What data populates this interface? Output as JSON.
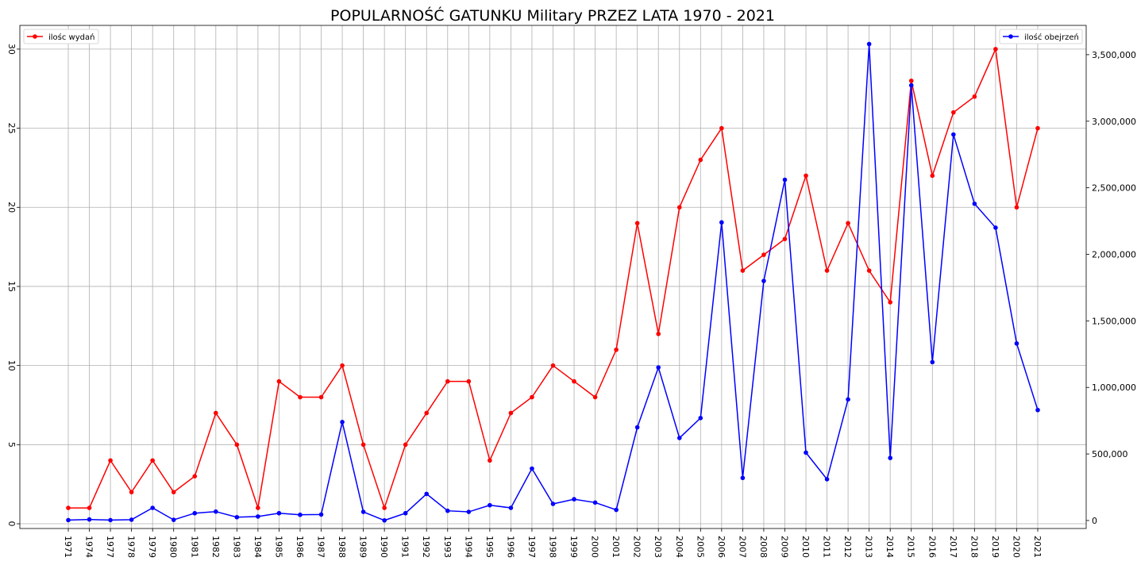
{
  "chart_data": {
    "type": "line",
    "title": "POPULARNOŚĆ GATUNKU Military PRZEZ LATA 1970 - 2021",
    "categories": [
      "1971",
      "1974",
      "1977",
      "1978",
      "1979",
      "1980",
      "1981",
      "1982",
      "1983",
      "1984",
      "1985",
      "1986",
      "1987",
      "1988",
      "1989",
      "1990",
      "1991",
      "1992",
      "1993",
      "1994",
      "1995",
      "1996",
      "1997",
      "1998",
      "1999",
      "2000",
      "2001",
      "2002",
      "2003",
      "2004",
      "2005",
      "2006",
      "2007",
      "2008",
      "2009",
      "2010",
      "2011",
      "2012",
      "2013",
      "2014",
      "2015",
      "2016",
      "2017",
      "2018",
      "2019",
      "2020",
      "2021"
    ],
    "series": [
      {
        "name": "ilośc wydań",
        "axis": "left",
        "color": "#ff0000",
        "values": [
          1,
          1,
          4,
          2,
          4,
          2,
          3,
          7,
          5,
          1,
          9,
          8,
          8,
          10,
          5,
          1,
          5,
          7,
          9,
          9,
          4,
          7,
          8,
          10,
          9,
          8,
          11,
          19,
          12,
          20,
          23,
          25,
          16,
          17,
          18,
          22,
          16,
          19,
          16,
          14,
          28,
          22,
          26,
          27,
          30,
          20,
          25
        ]
      },
      {
        "name": "ilość obejrzeń",
        "axis": "right",
        "color": "#0000ff",
        "values": [
          3000,
          8000,
          3000,
          6000,
          95000,
          5000,
          55000,
          67000,
          25000,
          30000,
          55000,
          43000,
          45000,
          740000,
          65000,
          1000,
          55000,
          200000,
          73000,
          65000,
          115000,
          95000,
          390000,
          125000,
          160000,
          135000,
          80000,
          700000,
          1150000,
          620000,
          770000,
          2240000,
          320000,
          1800000,
          2560000,
          510000,
          310000,
          910000,
          3580000,
          470000,
          3270000,
          1190000,
          2900000,
          2380000,
          2200000,
          1330000,
          830000
        ]
      }
    ],
    "y_left": {
      "range": [
        -0.3,
        31.5
      ],
      "ticks": [
        0,
        5,
        10,
        15,
        20,
        25,
        30
      ],
      "tick_labels": [
        "0",
        "5",
        "10",
        "15",
        "20",
        "25",
        "30"
      ]
    },
    "y_right": {
      "range": [
        -60000,
        3720000
      ],
      "ticks": [
        0,
        500000,
        1000000,
        1500000,
        2000000,
        2500000,
        3000000,
        3500000
      ],
      "tick_labels": [
        "0",
        "500,000",
        "1,000,000",
        "1,500,000",
        "2,000,000",
        "2,500,000",
        "3,000,000",
        "3,500,000"
      ]
    },
    "grid": true,
    "legend_left": "upper-left",
    "legend_right": "upper-right",
    "xlabel": "",
    "ylabel": ""
  }
}
